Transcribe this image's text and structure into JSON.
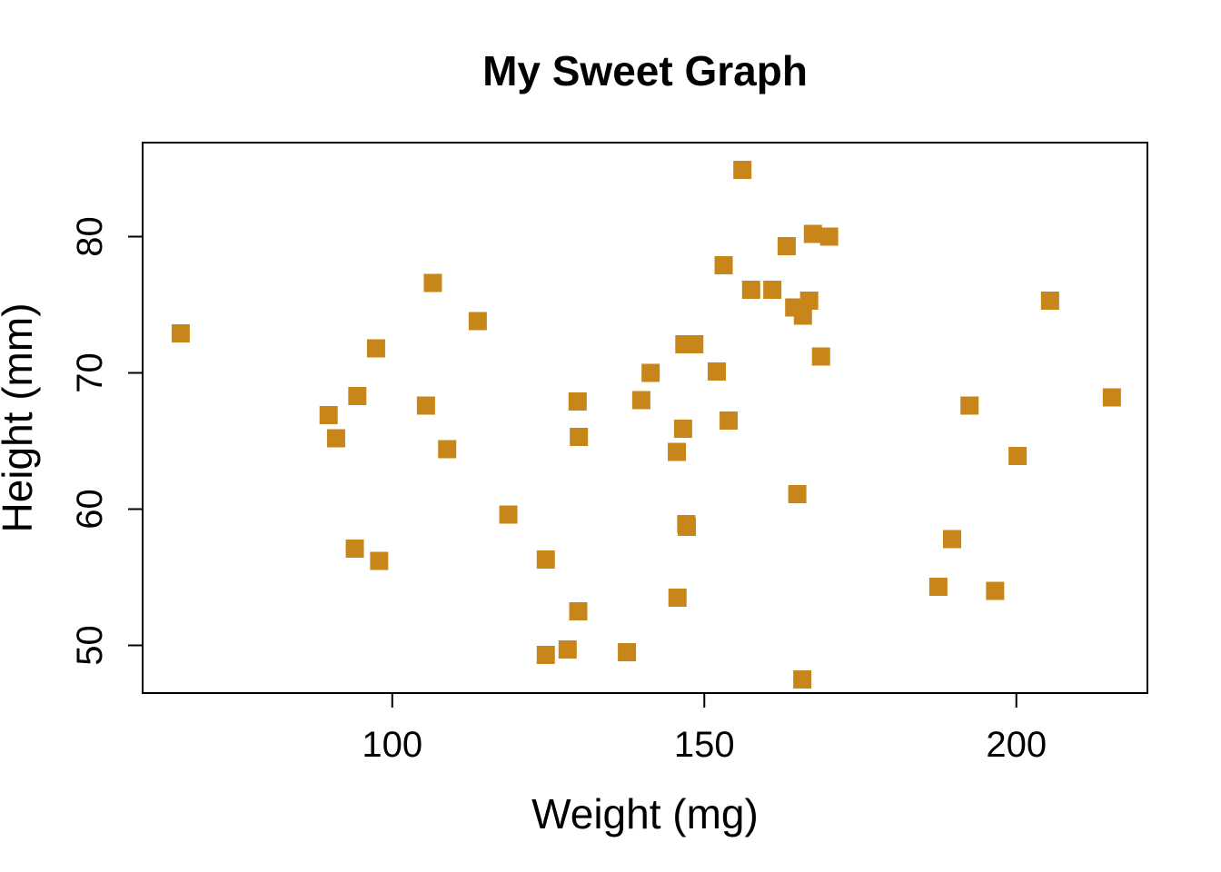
{
  "chart_data": {
    "type": "scatter",
    "title": "My Sweet Graph",
    "xlabel": "Weight (mg)",
    "ylabel": "Height (mm)",
    "xlim": [
      60,
      221
    ],
    "ylim": [
      46.5,
      86.9
    ],
    "xticks": [
      100,
      150,
      200
    ],
    "yticks": [
      50,
      60,
      70,
      80
    ],
    "grid": false,
    "marker": "square",
    "point_color": "#C8861A",
    "series": [
      {
        "points": [
          [
            66.1,
            72.9
          ],
          [
            89.8,
            66.9
          ],
          [
            91.0,
            65.2
          ],
          [
            94.4,
            68.3
          ],
          [
            97.4,
            71.8
          ],
          [
            94.0,
            57.1
          ],
          [
            97.9,
            56.2
          ],
          [
            106.5,
            76.6
          ],
          [
            105.4,
            67.6
          ],
          [
            108.8,
            64.4
          ],
          [
            113.7,
            73.8
          ],
          [
            118.6,
            59.6
          ],
          [
            124.6,
            56.3
          ],
          [
            124.6,
            49.3
          ],
          [
            128.1,
            49.7
          ],
          [
            129.7,
            67.9
          ],
          [
            129.9,
            65.3
          ],
          [
            129.8,
            52.5
          ],
          [
            137.6,
            49.5
          ],
          [
            139.9,
            68.0
          ],
          [
            141.4,
            70.0
          ],
          [
            145.6,
            64.2
          ],
          [
            145.7,
            53.5
          ],
          [
            146.6,
            65.9
          ],
          [
            146.8,
            72.1
          ],
          [
            148.4,
            72.1
          ],
          [
            147.1,
            58.9
          ],
          [
            147.2,
            58.7
          ],
          [
            152.0,
            70.1
          ],
          [
            153.1,
            77.9
          ],
          [
            153.9,
            66.5
          ],
          [
            156.1,
            84.9
          ],
          [
            157.5,
            76.1
          ],
          [
            160.9,
            76.1
          ],
          [
            163.2,
            79.3
          ],
          [
            164.4,
            74.8
          ],
          [
            165.8,
            74.2
          ],
          [
            166.8,
            75.3
          ],
          [
            167.4,
            80.2
          ],
          [
            168.7,
            71.2
          ],
          [
            170.0,
            80.0
          ],
          [
            164.9,
            61.1
          ],
          [
            165.7,
            47.5
          ],
          [
            187.5,
            54.3
          ],
          [
            189.7,
            57.8
          ],
          [
            192.5,
            67.6
          ],
          [
            196.6,
            54.0
          ],
          [
            200.2,
            63.9
          ],
          [
            205.4,
            75.3
          ],
          [
            215.3,
            68.2
          ]
        ]
      }
    ]
  }
}
